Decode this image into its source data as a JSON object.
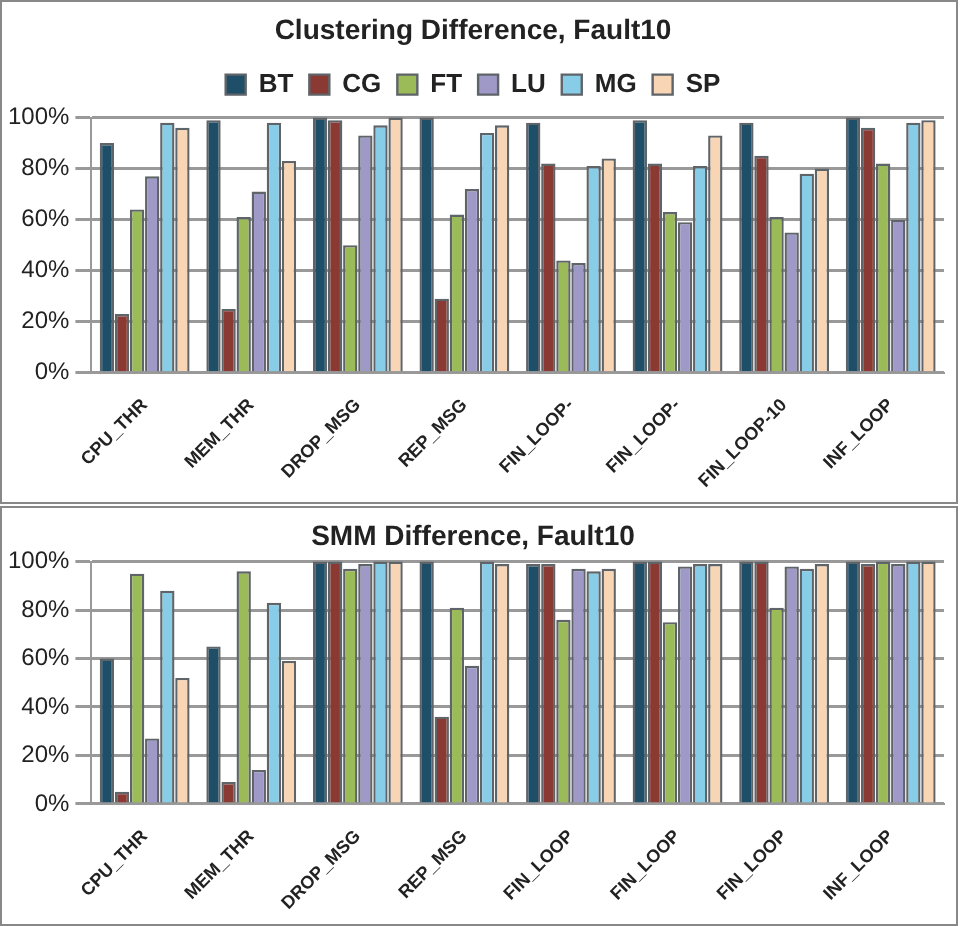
{
  "chart_data": [
    {
      "type": "bar",
      "title": "Clustering Difference, Fault10",
      "categories": [
        "CPU_THR",
        "MEM_THR",
        "DROP_MSG",
        "REP_MSG",
        "FIN_LOOP-",
        "FIN_LOOP-",
        "FIN_LOOP-10",
        "INF_LOOP"
      ],
      "series": [
        {
          "name": "BT",
          "color": "#1f4e68",
          "values": [
            90,
            99,
            100,
            100,
            98,
            99,
            98,
            100
          ]
        },
        {
          "name": "CG",
          "color": "#8b3a33",
          "values": [
            23,
            25,
            99,
            29,
            82,
            82,
            85,
            96
          ]
        },
        {
          "name": "FT",
          "color": "#9bbb59",
          "values": [
            64,
            61,
            50,
            62,
            44,
            63,
            61,
            82
          ]
        },
        {
          "name": "LU",
          "color": "#9f99c8",
          "values": [
            77,
            71,
            93,
            72,
            43,
            59,
            55,
            60
          ]
        },
        {
          "name": "MG",
          "color": "#87cde8",
          "values": [
            98,
            98,
            97,
            94,
            81,
            81,
            78,
            98
          ]
        },
        {
          "name": "SP",
          "color": "#f7d5b5",
          "values": [
            96,
            83,
            100,
            97,
            84,
            93,
            80,
            99
          ]
        }
      ],
      "ylim": [
        0,
        100
      ],
      "yticks": [
        {
          "value": 0,
          "label": "0%"
        },
        {
          "value": 20,
          "label": "20%"
        },
        {
          "value": 40,
          "label": "40%"
        },
        {
          "value": 60,
          "label": "60%"
        },
        {
          "value": 80,
          "label": "80%"
        },
        {
          "value": 100,
          "label": "100%"
        }
      ],
      "grid": "y",
      "legend": "top"
    },
    {
      "type": "bar",
      "title": "SMM Difference, Fault10",
      "categories": [
        "CPU_THR",
        "MEM_THR",
        "DROP_MSG",
        "REP_MSG",
        "FIN_LOOP",
        "FIN_LOOP",
        "FIN_LOOP",
        "INF_LOOP"
      ],
      "series": [
        {
          "color": "#1f4e68",
          "values": [
            60,
            65,
            100,
            100,
            99,
            100,
            100,
            100
          ]
        },
        {
          "color": "#8b3a33",
          "values": [
            5,
            9,
            100,
            36,
            99,
            100,
            100,
            99
          ]
        },
        {
          "color": "#9bbb59",
          "values": [
            95,
            96,
            97,
            81,
            76,
            75,
            81,
            100
          ]
        },
        {
          "color": "#9f99c8",
          "values": [
            27,
            14,
            99,
            57,
            97,
            98,
            98,
            99
          ]
        },
        {
          "color": "#87cde8",
          "values": [
            88,
            83,
            100,
            100,
            96,
            99,
            97,
            100
          ]
        },
        {
          "color": "#f7d5b5",
          "values": [
            52,
            59,
            100,
            99,
            97,
            99,
            99,
            100
          ]
        }
      ],
      "ylim": [
        0,
        100
      ],
      "yticks": [
        {
          "value": 0,
          "label": "0%"
        },
        {
          "value": 20,
          "label": "20%"
        },
        {
          "value": 40,
          "label": "40%"
        },
        {
          "value": 60,
          "label": "60%"
        },
        {
          "value": 80,
          "label": "80%"
        },
        {
          "value": 100,
          "label": "100%"
        }
      ],
      "grid": "y",
      "legend": false
    }
  ]
}
